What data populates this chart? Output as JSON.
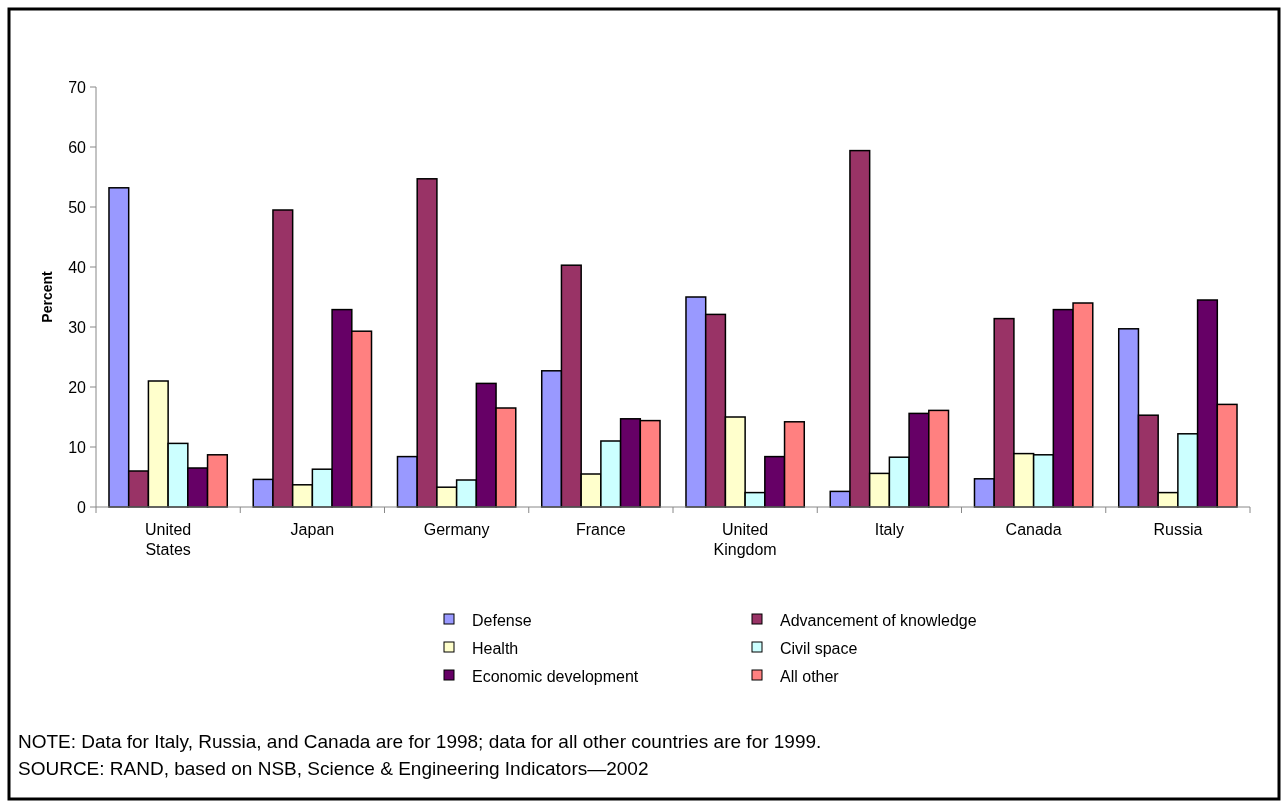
{
  "chart_data": {
    "type": "bar",
    "ylabel": "Percent",
    "categories": [
      "United States",
      "Japan",
      "Germany",
      "France",
      "United Kingdom",
      "Italy",
      "Canada",
      "Russia"
    ],
    "series": [
      {
        "name": "Defense",
        "color": "#9999ff",
        "values": [
          53.2,
          4.6,
          8.4,
          22.7,
          35,
          2.6,
          4.7,
          29.7
        ]
      },
      {
        "name": "Advancement of knowledge",
        "color": "#993366",
        "values": [
          6,
          49.5,
          54.7,
          40.3,
          32.1,
          59.4,
          31.4,
          15.3
        ]
      },
      {
        "name": "Health",
        "color": "#ffffcc",
        "values": [
          21,
          3.7,
          3.3,
          5.5,
          15,
          5.6,
          8.9,
          2.4
        ]
      },
      {
        "name": "Civil space",
        "color": "#ccffff",
        "values": [
          10.6,
          6.3,
          4.5,
          11,
          2.4,
          8.3,
          8.7,
          12.2
        ]
      },
      {
        "name": "Economic development",
        "color": "#660066",
        "values": [
          6.5,
          32.9,
          20.6,
          14.7,
          8.4,
          15.6,
          32.9,
          34.5
        ]
      },
      {
        "name": "All other",
        "color": "#ff8080",
        "values": [
          8.7,
          29.3,
          16.5,
          14.4,
          14.2,
          16.1,
          34,
          17.1
        ]
      }
    ],
    "ylim": [
      0,
      70
    ],
    "yticks": [
      0,
      10,
      20,
      30,
      40,
      50,
      60,
      70
    ],
    "grid": false,
    "legend": "bottom",
    "annotations": [
      "NOTE:  Data for Italy, Russia, and Canada are for 1998; data for all other countries are for 1999.",
      "SOURCE:  RAND, based on NSB, Science & Engineering Indicators—2002"
    ]
  }
}
